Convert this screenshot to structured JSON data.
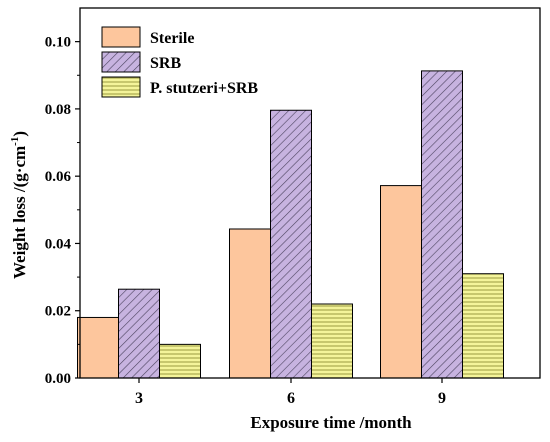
{
  "chart_data": {
    "type": "bar",
    "categories": [
      "3",
      "6",
      "9"
    ],
    "series": [
      {
        "name": "Sterile",
        "values": [
          0.018,
          0.0443,
          0.0572
        ],
        "color": "#fdc69d",
        "pattern": "solid"
      },
      {
        "name": "SRB",
        "values": [
          0.0264,
          0.0796,
          0.0913
        ],
        "color": "#c7b3e0",
        "pattern": "diagonal-hatch"
      },
      {
        "name": "P. stutzeri+SRB",
        "values": [
          0.01,
          0.022,
          0.031
        ],
        "color": "#f4f49a",
        "pattern": "horizontal-lines"
      }
    ],
    "xlabel": "Exposure time /month",
    "ylabel_main": "Weight loss /(g·cm",
    "ylabel_sup": "-1",
    "ylabel_close": ")",
    "ylim": [
      0,
      0.11
    ],
    "yticks": [
      "0.00",
      "0.02",
      "0.04",
      "0.06",
      "0.08",
      "0.10"
    ],
    "legend_position": "top-left",
    "grid": false
  }
}
